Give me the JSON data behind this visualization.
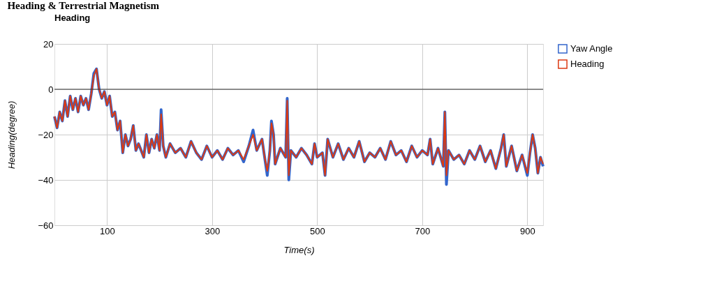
{
  "chart_data": {
    "type": "line",
    "title": "Heading & Terrestrial Magnetism",
    "subtitle": "Heading",
    "xlabel": "Time(s)",
    "ylabel": "Heading(degree)",
    "x": [
      0,
      5,
      10,
      15,
      20,
      25,
      30,
      35,
      40,
      45,
      50,
      55,
      60,
      65,
      70,
      75,
      80,
      85,
      90,
      95,
      100,
      105,
      110,
      115,
      120,
      125,
      130,
      135,
      140,
      145,
      150,
      155,
      160,
      170,
      175,
      180,
      185,
      190,
      195,
      200,
      203,
      207,
      212,
      220,
      230,
      240,
      250,
      260,
      270,
      280,
      290,
      300,
      310,
      320,
      330,
      340,
      350,
      360,
      370,
      378,
      385,
      395,
      400,
      405,
      410,
      413,
      417,
      420,
      430,
      440,
      443,
      446,
      450,
      460,
      470,
      480,
      490,
      495,
      500,
      510,
      515,
      520,
      530,
      540,
      550,
      560,
      570,
      580,
      590,
      600,
      610,
      620,
      630,
      640,
      650,
      660,
      670,
      680,
      690,
      700,
      710,
      715,
      720,
      730,
      740,
      743,
      746,
      750,
      760,
      770,
      780,
      790,
      800,
      810,
      820,
      830,
      840,
      850,
      855,
      860,
      870,
      880,
      890,
      900,
      905,
      910,
      915,
      920,
      925,
      930
    ],
    "series": [
      {
        "name": "Yaw Angle",
        "color": "#3366cc",
        "values": [
          -12,
          -17,
          -10,
          -14,
          -5,
          -12,
          -3,
          -9,
          -4,
          -10,
          -3,
          -7,
          -4,
          -9,
          -2,
          7,
          9,
          0,
          -4,
          -1,
          -7,
          -3,
          -12,
          -10,
          -18,
          -14,
          -28,
          -20,
          -25,
          -22,
          -16,
          -27,
          -24,
          -30,
          -20,
          -28,
          -22,
          -26,
          -20,
          -27,
          -9,
          -25,
          -30,
          -24,
          -28,
          -26,
          -30,
          -23,
          -28,
          -31,
          -25,
          -30,
          -27,
          -31,
          -26,
          -29,
          -27,
          -32,
          -25,
          -18,
          -27,
          -22,
          -30,
          -38,
          -27,
          -14,
          -20,
          -33,
          -26,
          -30,
          -4,
          -40,
          -27,
          -30,
          -26,
          -29,
          -33,
          -24,
          -30,
          -28,
          -38,
          -22,
          -30,
          -24,
          -31,
          -26,
          -30,
          -23,
          -32,
          -28,
          -30,
          -26,
          -31,
          -23,
          -29,
          -27,
          -32,
          -25,
          -30,
          -27,
          -29,
          -22,
          -33,
          -26,
          -34,
          -10,
          -42,
          -27,
          -31,
          -29,
          -33,
          -27,
          -31,
          -25,
          -32,
          -27,
          -35,
          -26,
          -20,
          -34,
          -25,
          -36,
          -29,
          -38,
          -28,
          -20,
          -26,
          -37,
          -30,
          -34
        ]
      },
      {
        "name": "Heading",
        "color": "#dc3912",
        "values": [
          -12,
          -17,
          -10,
          -14,
          -5,
          -12,
          -3,
          -9,
          -4,
          -10,
          -3,
          -7,
          -4,
          -9,
          -2,
          6,
          9,
          0,
          -4,
          -1,
          -7,
          -3,
          -12,
          -10,
          -18,
          -14,
          -28,
          -20,
          -25,
          -22,
          -16,
          -27,
          -24,
          -30,
          -20,
          -28,
          -22,
          -26,
          -20,
          -27,
          -11,
          -25,
          -30,
          -24,
          -28,
          -26,
          -30,
          -23,
          -28,
          -31,
          -25,
          -30,
          -27,
          -31,
          -26,
          -29,
          -27,
          -31,
          -25,
          -20,
          -27,
          -22,
          -30,
          -36,
          -27,
          -15,
          -20,
          -33,
          -26,
          -30,
          -5,
          -38,
          -27,
          -30,
          -26,
          -29,
          -33,
          -24,
          -30,
          -28,
          -38,
          -22,
          -30,
          -24,
          -31,
          -26,
          -30,
          -23,
          -32,
          -28,
          -30,
          -26,
          -31,
          -23,
          -29,
          -27,
          -32,
          -25,
          -30,
          -27,
          -29,
          -22,
          -33,
          -26,
          -34,
          -10,
          -38,
          -27,
          -31,
          -29,
          -33,
          -27,
          -31,
          -25,
          -32,
          -27,
          -35,
          -26,
          -20,
          -34,
          -25,
          -36,
          -29,
          -37,
          -28,
          -20,
          -26,
          -37,
          -30,
          -33
        ]
      }
    ],
    "xlim": [
      0,
      930
    ],
    "xticks": [
      100,
      300,
      500,
      700,
      900
    ],
    "ylim": [
      -60,
      20
    ],
    "yticks": [
      -60,
      -40,
      -20,
      0,
      20
    ],
    "ref_lines": [
      {
        "axis": "y",
        "value": 0,
        "color": "#333333"
      }
    ],
    "grid": true,
    "legend": "top right"
  }
}
